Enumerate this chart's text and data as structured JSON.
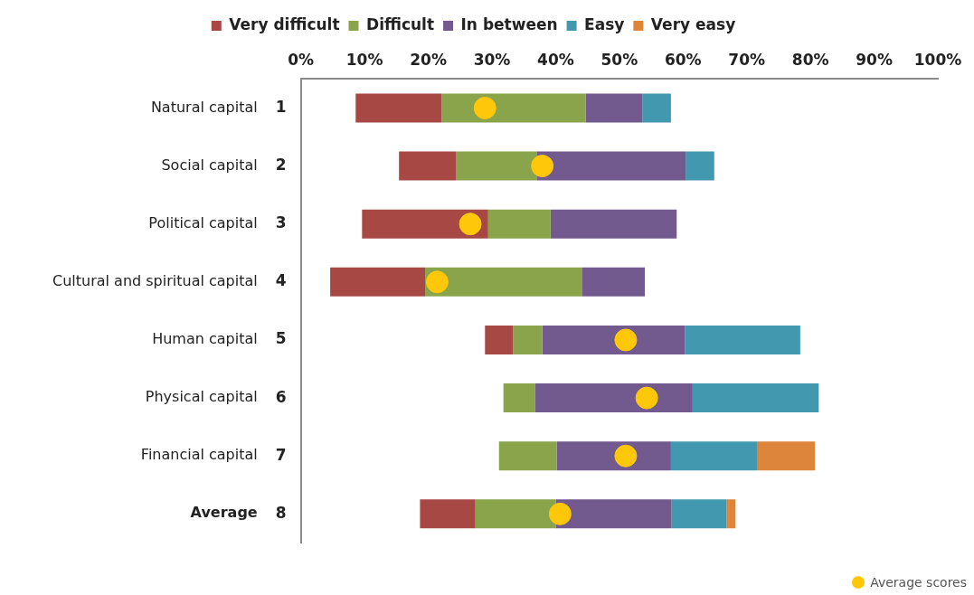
{
  "chart_data": {
    "type": "bar",
    "orientation": "horizontal",
    "categories": [
      "Natural capital",
      "Social capital",
      "Political capital",
      "Cultural and spiritual capital",
      "Human capital",
      "Physical capital",
      "Financial capital",
      "Average"
    ],
    "series": [
      {
        "name": "Very difficult",
        "color": "#a84845",
        "base": [
          8.6,
          15.4,
          9.6,
          4.6,
          28.9,
          null,
          null,
          18.7
        ],
        "values": [
          13.5,
          9.0,
          19.8,
          14.9,
          4.4,
          null,
          null,
          8.7
        ]
      },
      {
        "name": "Difficult",
        "color": "#89a44b",
        "base": [
          22.1,
          24.4,
          29.4,
          19.5,
          33.3,
          31.8,
          31.1,
          27.4
        ],
        "values": [
          22.6,
          12.6,
          9.8,
          24.7,
          4.6,
          5.0,
          9.1,
          12.6
        ]
      },
      {
        "name": "In between",
        "color": "#72598e",
        "base": [
          44.7,
          37.0,
          39.2,
          44.2,
          37.9,
          36.8,
          40.2,
          40.0
        ],
        "values": [
          8.9,
          23.4,
          19.8,
          9.8,
          22.4,
          24.7,
          17.9,
          18.2
        ]
      },
      {
        "name": "Easy",
        "color": "#4298ae",
        "base": [
          53.6,
          60.4,
          null,
          null,
          60.3,
          61.5,
          58.1,
          58.2
        ],
        "values": [
          4.5,
          4.5,
          null,
          null,
          18.1,
          19.8,
          13.5,
          8.6
        ]
      },
      {
        "name": "Very easy",
        "color": "#de853c",
        "base": [
          null,
          null,
          null,
          null,
          null,
          null,
          71.6,
          66.8
        ],
        "values": [
          null,
          null,
          null,
          null,
          null,
          null,
          9.1,
          1.4
        ]
      },
      {
        "name": "Average scores",
        "type": "scatter",
        "color": "#ffc709",
        "marker": "circle",
        "values": [
          28.9,
          37.9,
          26.6,
          21.4,
          51.0,
          54.3,
          51.0,
          40.7
        ]
      }
    ],
    "xlim": [
      0,
      100
    ],
    "xticks": [
      {
        "value": 0,
        "label": "0%"
      },
      {
        "value": 10,
        "label": "10%"
      },
      {
        "value": 20,
        "label": "20%"
      },
      {
        "value": 30,
        "label": "30%"
      },
      {
        "value": 40,
        "label": "40%"
      },
      {
        "value": 50,
        "label": "50%"
      },
      {
        "value": 60,
        "label": "60%"
      },
      {
        "value": 70,
        "label": "70%"
      },
      {
        "value": 80,
        "label": "80%"
      },
      {
        "value": 90,
        "label": "90%"
      },
      {
        "value": 100,
        "label": "100%"
      }
    ],
    "grid": false,
    "legend": "top",
    "annotations": [
      "1",
      "2",
      "3",
      "4",
      "5",
      "6",
      "7",
      "8"
    ]
  }
}
